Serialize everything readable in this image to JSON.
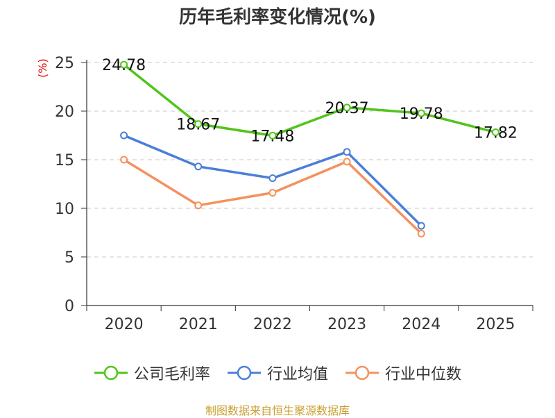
{
  "title": "历年毛利率变化情况(%)",
  "source": "制图数据来自恒生聚源数据库",
  "chart_data": {
    "type": "line",
    "title": "历年毛利率变化情况(%)",
    "x": [
      "2020",
      "2021",
      "2022",
      "2023",
      "2024",
      "2025"
    ],
    "ylabel": "(%)",
    "ylim": [
      0,
      25
    ],
    "yticks": [
      0,
      5,
      10,
      15,
      20,
      25
    ],
    "grid": true,
    "legend_position": "bottom",
    "series": [
      {
        "name": "公司毛利率",
        "color": "#52c41a",
        "values": [
          24.78,
          18.67,
          17.48,
          20.37,
          19.78,
          17.82
        ],
        "data_labels": [
          "24.78",
          "18.67",
          "17.48",
          "20.37",
          "19.78",
          "17.82"
        ]
      },
      {
        "name": "行业均值",
        "color": "#4a7fd8",
        "values": [
          17.5,
          14.3,
          13.1,
          15.8,
          8.2,
          null
        ],
        "data_labels": []
      },
      {
        "name": "行业中位数",
        "color": "#f4915e",
        "values": [
          15.0,
          10.3,
          11.6,
          14.8,
          7.4,
          null
        ],
        "data_labels": []
      }
    ]
  }
}
